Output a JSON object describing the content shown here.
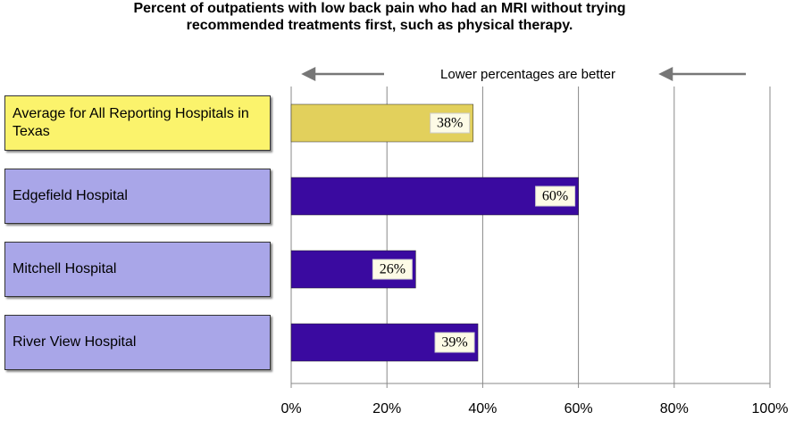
{
  "chart_data": {
    "type": "hbar",
    "title": "Percent of outpatients with low back pain who had an MRI without trying recommended treatments first, such as physical therapy.",
    "annotation": "Lower percentages are better",
    "categories": [
      "Average for All Reporting Hospitals in Texas",
      "Edgefield Hospital",
      "Mitchell Hospital",
      "River View Hospital"
    ],
    "values": [
      38,
      60,
      26,
      39
    ],
    "value_labels": [
      "38%",
      "60%",
      "26%",
      "39%"
    ],
    "colors": [
      "#e2d05c",
      "#3a0aa0",
      "#3a0aa0",
      "#3a0aa0"
    ],
    "category_colors": [
      "#fbf36c",
      "#a9a6e8",
      "#a9a6e8",
      "#a9a6e8"
    ],
    "xlim": [
      0,
      100
    ],
    "xticks": [
      {
        "value": 0,
        "label": "0%"
      },
      {
        "value": 20,
        "label": "20%"
      },
      {
        "value": 40,
        "label": "40%"
      },
      {
        "value": 60,
        "label": "60%"
      },
      {
        "value": 80,
        "label": "80%"
      },
      {
        "value": 100,
        "label": "100%"
      }
    ],
    "grid": true
  }
}
